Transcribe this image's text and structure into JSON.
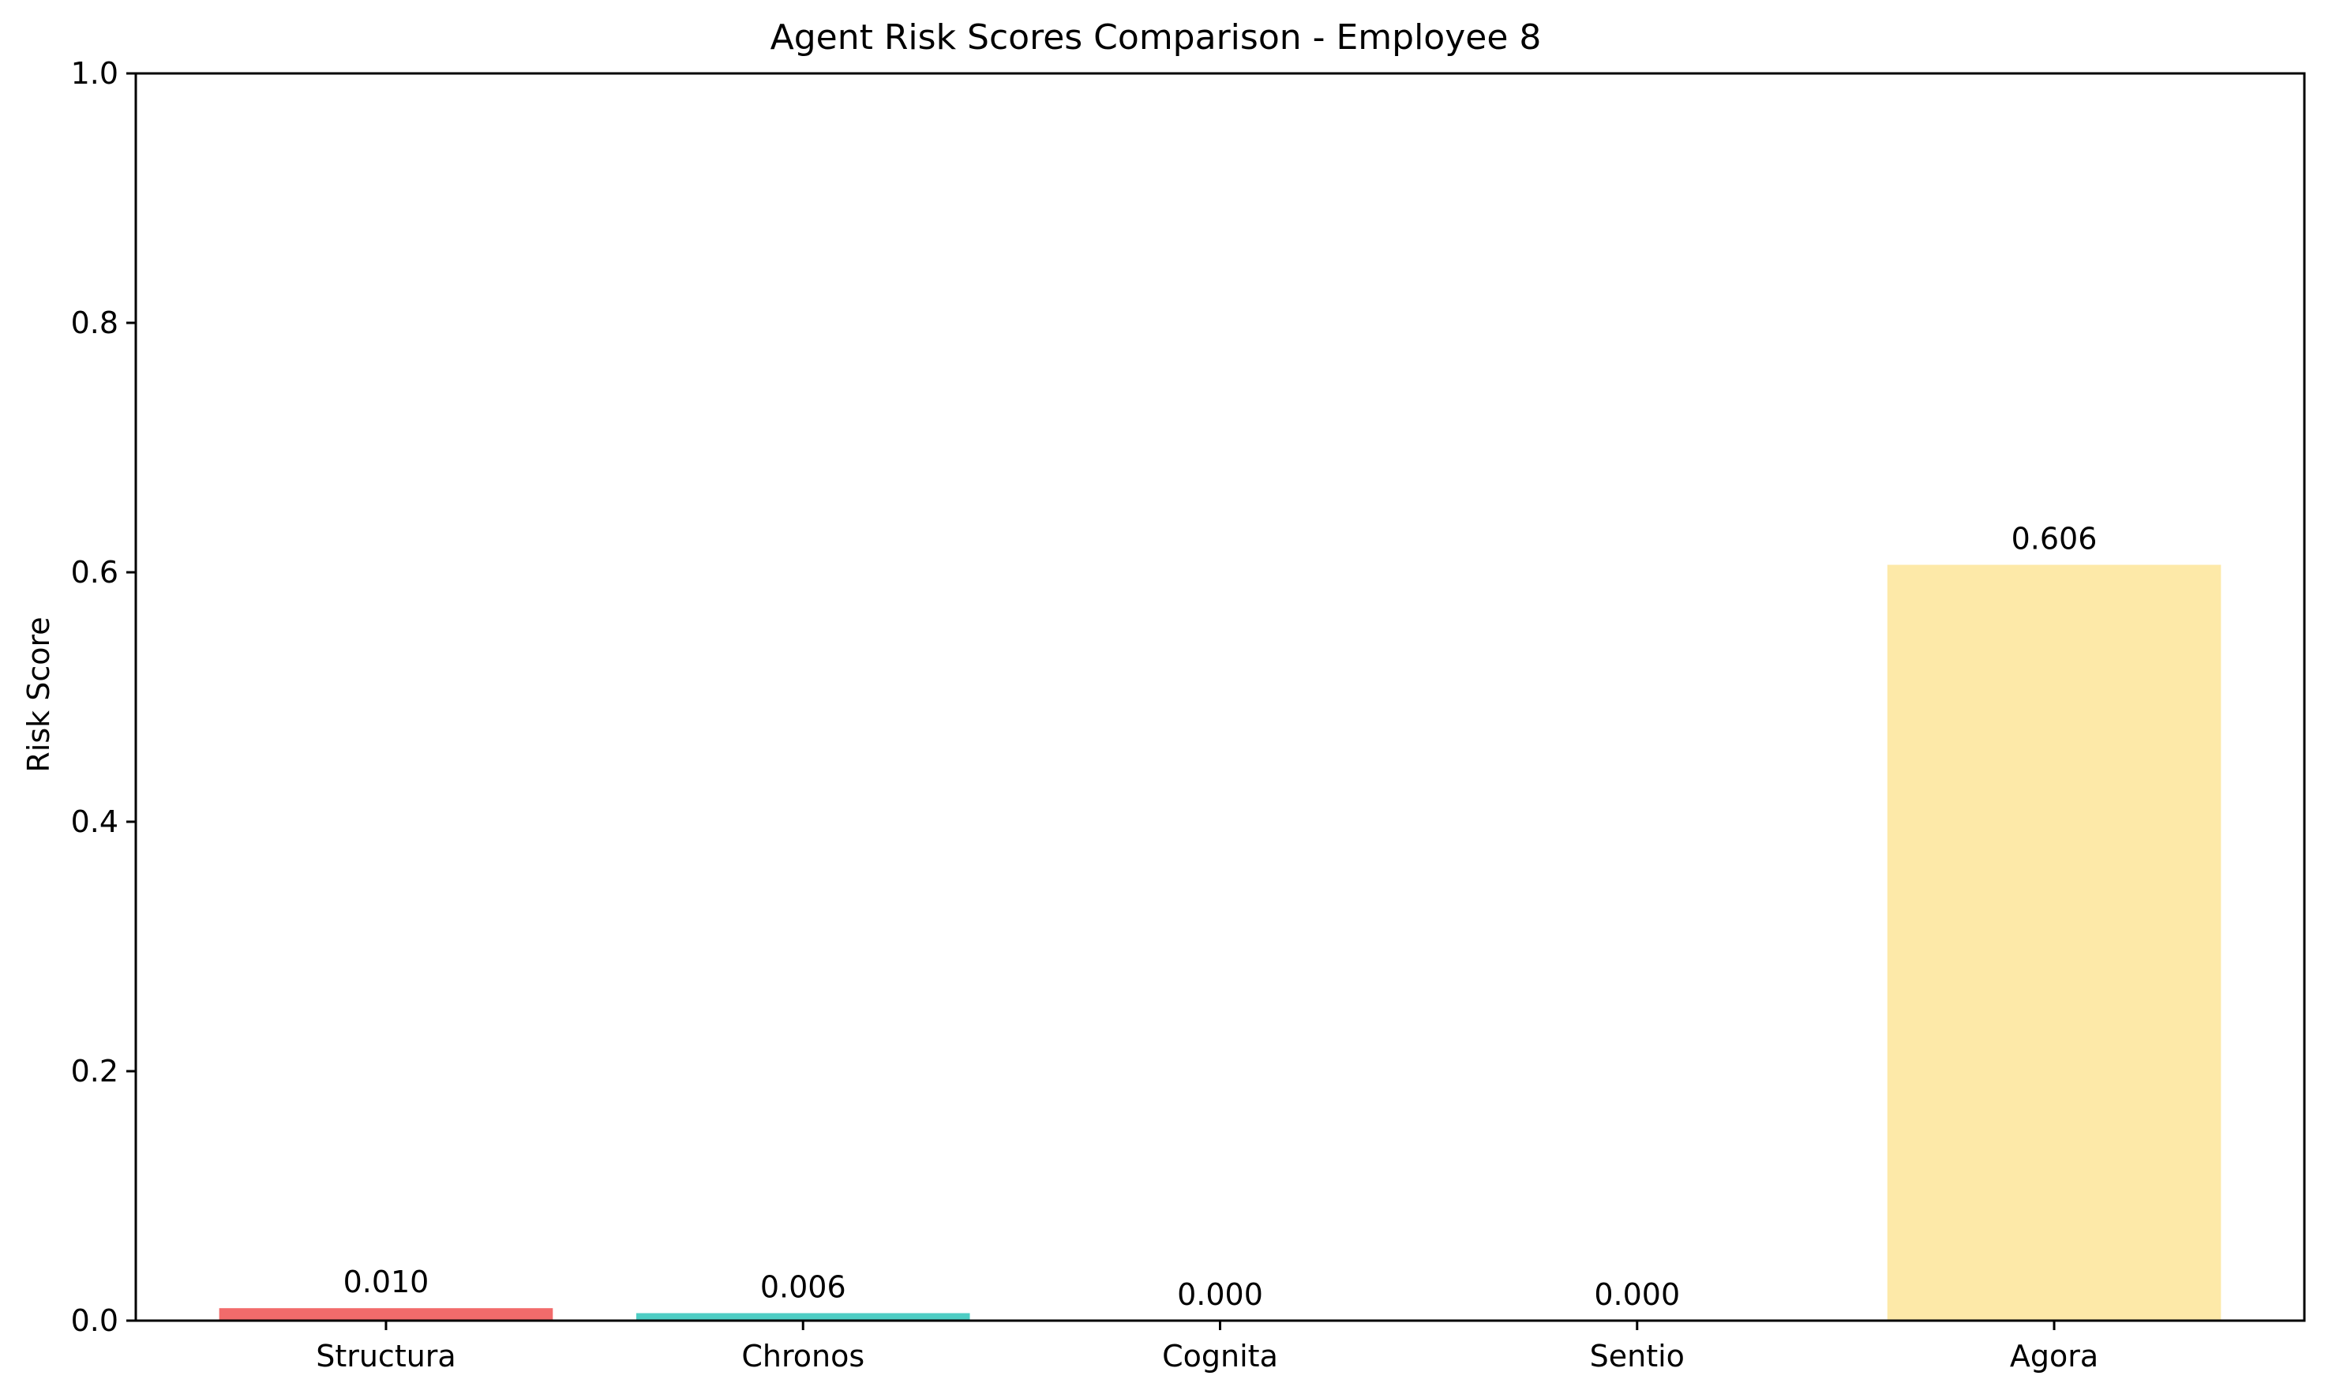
{
  "chart_data": {
    "type": "bar",
    "title": "Agent Risk Scores Comparison - Employee 8",
    "xlabel": "",
    "ylabel": "Risk Score",
    "ylim": [
      0,
      1.0
    ],
    "yticks": [
      "0.0",
      "0.2",
      "0.4",
      "0.6",
      "0.8",
      "1.0"
    ],
    "grid": false,
    "categories": [
      "Structura",
      "Chronos",
      "Cognita",
      "Sentio",
      "Agora"
    ],
    "values": [
      0.01,
      0.006,
      0.0,
      0.0,
      0.606
    ],
    "value_labels": [
      "0.010",
      "0.006",
      "0.000",
      "0.000",
      "0.606"
    ],
    "colors": [
      "#f26b6b",
      "#4ecdc4",
      "#45b7d1",
      "#96ceb4",
      "#fde9a8"
    ]
  }
}
